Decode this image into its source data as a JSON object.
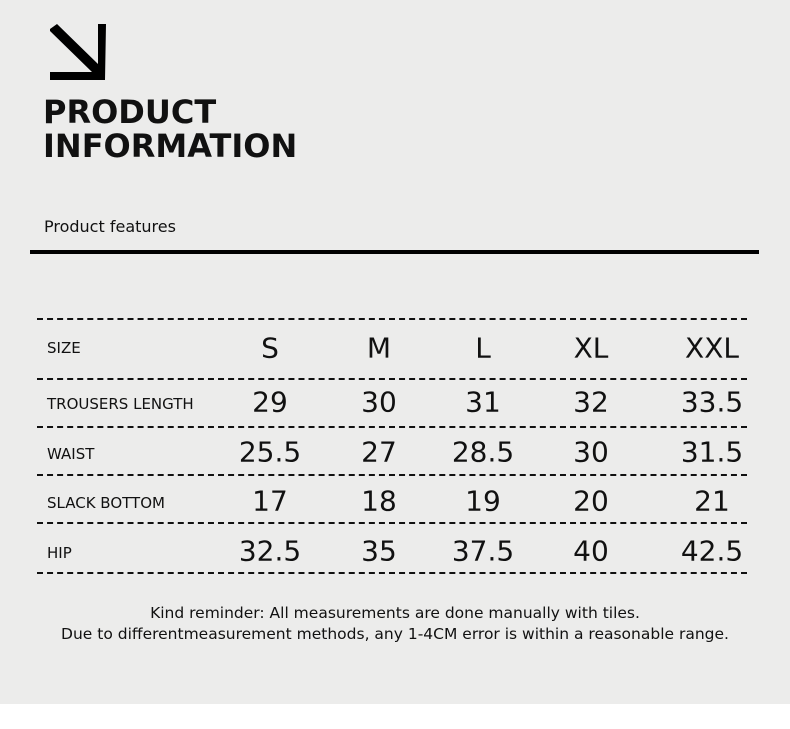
{
  "header": {
    "icon": "arrow-down-right-icon",
    "title_line1": "PRODUCT",
    "title_line2": "INFORMATION",
    "subtitle": "Product features"
  },
  "size_table": {
    "header_label": "SIZE",
    "sizes": [
      "S",
      "M",
      "L",
      "XL",
      "XXL"
    ],
    "rows": [
      {
        "label": "TROUSERS LENGTH",
        "values": [
          "29",
          "30",
          "31",
          "32",
          "33.5"
        ]
      },
      {
        "label": "WAIST",
        "values": [
          "25.5",
          "27",
          "28.5",
          "30",
          "31.5"
        ]
      },
      {
        "label": "SLACK BOTTOM",
        "values": [
          "17",
          "18",
          "19",
          "20",
          "21"
        ]
      },
      {
        "label": "HIP",
        "values": [
          "32.5",
          "35",
          "37.5",
          "40",
          "42.5"
        ]
      }
    ]
  },
  "notes": {
    "line1": "Kind reminder: All measurements are done manually with tiles.",
    "line2": "Due to differentmeasurement methods, any 1-4CM error is within a reasonable range."
  },
  "colors": {
    "background": "#ececeb",
    "text": "#111111"
  }
}
